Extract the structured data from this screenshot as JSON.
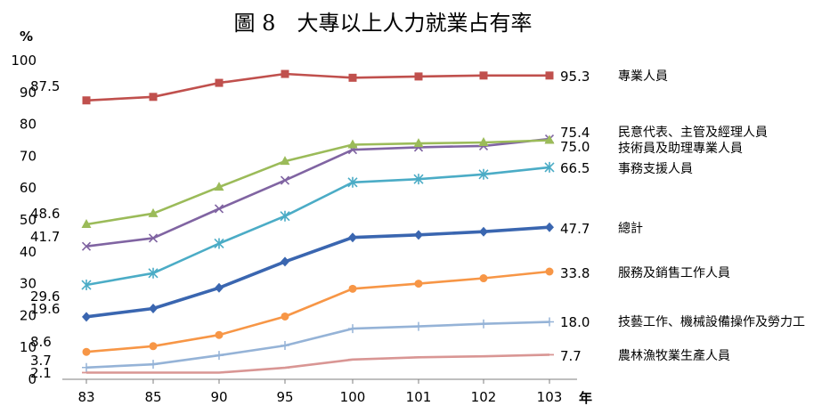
{
  "chart_data": {
    "type": "line",
    "title": "圖 8　大專以上人力就業占有率",
    "ylabel": "%",
    "xlabel": "年",
    "ylim": [
      0,
      100
    ],
    "yticks": [
      0,
      10,
      20,
      30,
      40,
      50,
      60,
      70,
      80,
      90,
      100
    ],
    "categories": [
      "83",
      "85",
      "90",
      "95",
      "100",
      "101",
      "102",
      "103"
    ],
    "grid": false,
    "legend": "right",
    "series": [
      {
        "name": "專業人員",
        "color": "#c0504d",
        "marker": "square",
        "values": [
          87.5,
          88.6,
          93.0,
          95.8,
          94.6,
          95.0,
          95.3,
          95.3
        ],
        "start_label": "87.5",
        "end_label": "95.3"
      },
      {
        "name": "民意代表、主管及經理人員",
        "color": "#8064a2",
        "marker": "x",
        "values": [
          41.7,
          44.3,
          53.5,
          62.4,
          72.0,
          72.8,
          73.2,
          75.4
        ],
        "start_label": "41.7",
        "end_label": "75.4"
      },
      {
        "name": "技術員及助理專業人員",
        "color": "#9bbb59",
        "marker": "triangle",
        "values": [
          48.6,
          52.0,
          60.3,
          68.4,
          73.6,
          74.0,
          74.3,
          75.0
        ],
        "start_label": "48.6",
        "end_label": "75.0"
      },
      {
        "name": "事務支援人員",
        "color": "#4bacc6",
        "marker": "asterisk",
        "values": [
          29.6,
          33.3,
          42.6,
          51.2,
          61.8,
          62.8,
          64.3,
          66.5
        ],
        "start_label": "29.6",
        "end_label": "66.5"
      },
      {
        "name": "總計",
        "color": "#3a66b0",
        "marker": "diamond",
        "values": [
          19.6,
          22.2,
          28.7,
          36.9,
          44.5,
          45.3,
          46.3,
          47.7
        ],
        "start_label": "19.6",
        "end_label": "47.7"
      },
      {
        "name": "服務及銷售工作人員",
        "color": "#f79646",
        "marker": "circle",
        "values": [
          8.6,
          10.4,
          13.9,
          19.7,
          28.4,
          30.0,
          31.7,
          33.8
        ],
        "start_label": "8.6",
        "end_label": "33.8"
      },
      {
        "name": "技藝工作、機械設備操作及勞力工",
        "color": "#95b3d7",
        "marker": "plus",
        "values": [
          3.7,
          4.7,
          7.5,
          10.6,
          15.9,
          16.6,
          17.4,
          18.0
        ],
        "start_label": "3.7",
        "end_label": "18.0"
      },
      {
        "name": "農林漁牧業生產人員",
        "color": "#d99694",
        "marker": "dash",
        "values": [
          2.1,
          2.1,
          2.1,
          3.6,
          6.2,
          6.9,
          7.2,
          7.7
        ],
        "start_label": "2.1",
        "end_label": "7.7"
      }
    ]
  }
}
